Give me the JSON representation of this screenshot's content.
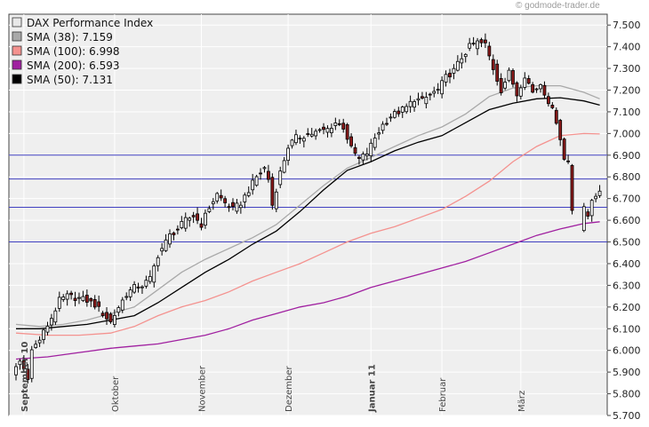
{
  "watermark": "© godmode-trader.de",
  "chart_data": {
    "type": "candlestick",
    "title": "",
    "xlabel": "",
    "ylabel": "",
    "ylim": [
      5700,
      7550
    ],
    "y_axis_side": "right",
    "grid": true,
    "legend_placement": "top-left",
    "y_ticks": [
      {
        "value": 5700,
        "label": "5.700"
      },
      {
        "value": 5800,
        "label": "5.800"
      },
      {
        "value": 5900,
        "label": "5.900"
      },
      {
        "value": 6000,
        "label": "6.000"
      },
      {
        "value": 6100,
        "label": "6.100"
      },
      {
        "value": 6200,
        "label": "6.200"
      },
      {
        "value": 6300,
        "label": "6.300"
      },
      {
        "value": 6400,
        "label": "6.400"
      },
      {
        "value": 6500,
        "label": "6.500"
      },
      {
        "value": 6600,
        "label": "6.600"
      },
      {
        "value": 6700,
        "label": "6.700"
      },
      {
        "value": 6800,
        "label": "6.800"
      },
      {
        "value": 6900,
        "label": "6.900"
      },
      {
        "value": 7000,
        "label": "7.000"
      },
      {
        "value": 7100,
        "label": "7.100"
      },
      {
        "value": 7200,
        "label": "7.200"
      },
      {
        "value": 7300,
        "label": "7.300"
      },
      {
        "value": 7400,
        "label": "7.400"
      },
      {
        "value": 7500,
        "label": "7.500"
      }
    ],
    "x_ticks": [
      {
        "index": 2,
        "label": "September 10",
        "bold": true
      },
      {
        "index": 25,
        "label": "Oktober",
        "bold": false
      },
      {
        "index": 47,
        "label": "November",
        "bold": false
      },
      {
        "index": 69,
        "label": "Dezember",
        "bold": false
      },
      {
        "index": 90,
        "label": "Januar 11",
        "bold": true
      },
      {
        "index": 108,
        "label": "Februar",
        "bold": false
      },
      {
        "index": 128,
        "label": "März",
        "bold": false
      }
    ],
    "horizontal_lines": [
      6900,
      6790,
      6660,
      6500
    ],
    "legend": [
      {
        "label": "DAX Performance Index",
        "color": "#e8e8e8"
      },
      {
        "label": "SMA (38): 7.159",
        "color": "#a9a9a9"
      },
      {
        "label": "SMA (100): 6.998",
        "color": "#f4928f"
      },
      {
        "label": "SMA (200): 6.593",
        "color": "#a020a0"
      },
      {
        "label": "SMA (50): 7.131",
        "color": "#000000"
      }
    ],
    "price_path": [
      [
        0,
        5900
      ],
      [
        2,
        5950
      ],
      [
        4,
        5880
      ],
      [
        5,
        6000
      ],
      [
        7,
        6050
      ],
      [
        10,
        6150
      ],
      [
        12,
        6230
      ],
      [
        14,
        6250
      ],
      [
        17,
        6240
      ],
      [
        19,
        6230
      ],
      [
        21,
        6210
      ],
      [
        23,
        6170
      ],
      [
        25,
        6130
      ],
      [
        27,
        6200
      ],
      [
        29,
        6260
      ],
      [
        31,
        6290
      ],
      [
        33,
        6300
      ],
      [
        35,
        6330
      ],
      [
        37,
        6440
      ],
      [
        40,
        6530
      ],
      [
        42,
        6560
      ],
      [
        44,
        6600
      ],
      [
        46,
        6620
      ],
      [
        48,
        6580
      ],
      [
        50,
        6660
      ],
      [
        52,
        6720
      ],
      [
        54,
        6680
      ],
      [
        56,
        6650
      ],
      [
        58,
        6680
      ],
      [
        60,
        6740
      ],
      [
        62,
        6800
      ],
      [
        64,
        6840
      ],
      [
        65,
        6790
      ],
      [
        66,
        6670
      ],
      [
        68,
        6820
      ],
      [
        70,
        6940
      ],
      [
        72,
        6980
      ],
      [
        74,
        6990
      ],
      [
        76,
        7000
      ],
      [
        78,
        7010
      ],
      [
        80,
        7020
      ],
      [
        82,
        7050
      ],
      [
        84,
        7030
      ],
      [
        86,
        6930
      ],
      [
        88,
        6880
      ],
      [
        90,
        6910
      ],
      [
        92,
        6980
      ],
      [
        94,
        7040
      ],
      [
        96,
        7080
      ],
      [
        98,
        7100
      ],
      [
        100,
        7120
      ],
      [
        102,
        7160
      ],
      [
        104,
        7150
      ],
      [
        106,
        7180
      ],
      [
        108,
        7200
      ],
      [
        110,
        7260
      ],
      [
        112,
        7290
      ],
      [
        114,
        7350
      ],
      [
        116,
        7400
      ],
      [
        118,
        7420
      ],
      [
        120,
        7410
      ],
      [
        122,
        7300
      ],
      [
        124,
        7200
      ],
      [
        126,
        7280
      ],
      [
        128,
        7180
      ],
      [
        130,
        7270
      ],
      [
        132,
        7190
      ],
      [
        134,
        7230
      ],
      [
        136,
        7150
      ],
      [
        138,
        7060
      ],
      [
        139,
        6980
      ],
      [
        140,
        6880
      ],
      [
        141,
        6870
      ],
      [
        142,
        6650
      ],
      [
        144,
        6570
      ],
      [
        145,
        6650
      ],
      [
        146,
        6620
      ],
      [
        147,
        6700
      ],
      [
        148,
        6720
      ]
    ],
    "sma_38": [
      [
        0,
        6120
      ],
      [
        6,
        6110
      ],
      [
        12,
        6120
      ],
      [
        18,
        6140
      ],
      [
        24,
        6170
      ],
      [
        30,
        6200
      ],
      [
        36,
        6280
      ],
      [
        42,
        6360
      ],
      [
        48,
        6420
      ],
      [
        54,
        6470
      ],
      [
        60,
        6520
      ],
      [
        66,
        6580
      ],
      [
        72,
        6670
      ],
      [
        78,
        6760
      ],
      [
        84,
        6840
      ],
      [
        90,
        6890
      ],
      [
        96,
        6940
      ],
      [
        102,
        6990
      ],
      [
        108,
        7030
      ],
      [
        114,
        7090
      ],
      [
        120,
        7170
      ],
      [
        126,
        7210
      ],
      [
        132,
        7220
      ],
      [
        138,
        7220
      ],
      [
        144,
        7190
      ],
      [
        148,
        7160
      ]
    ],
    "sma_50": [
      [
        0,
        6100
      ],
      [
        6,
        6100
      ],
      [
        12,
        6110
      ],
      [
        18,
        6120
      ],
      [
        24,
        6140
      ],
      [
        30,
        6160
      ],
      [
        36,
        6220
      ],
      [
        42,
        6290
      ],
      [
        48,
        6360
      ],
      [
        54,
        6420
      ],
      [
        60,
        6490
      ],
      [
        66,
        6550
      ],
      [
        72,
        6640
      ],
      [
        78,
        6740
      ],
      [
        84,
        6830
      ],
      [
        90,
        6870
      ],
      [
        96,
        6920
      ],
      [
        102,
        6960
      ],
      [
        108,
        6990
      ],
      [
        114,
        7050
      ],
      [
        120,
        7110
      ],
      [
        126,
        7140
      ],
      [
        132,
        7160
      ],
      [
        138,
        7165
      ],
      [
        144,
        7150
      ],
      [
        148,
        7131
      ]
    ],
    "sma_100": [
      [
        0,
        6080
      ],
      [
        8,
        6070
      ],
      [
        16,
        6070
      ],
      [
        24,
        6080
      ],
      [
        30,
        6110
      ],
      [
        36,
        6160
      ],
      [
        42,
        6200
      ],
      [
        48,
        6230
      ],
      [
        54,
        6270
      ],
      [
        60,
        6320
      ],
      [
        66,
        6360
      ],
      [
        72,
        6400
      ],
      [
        78,
        6450
      ],
      [
        84,
        6500
      ],
      [
        90,
        6540
      ],
      [
        96,
        6570
      ],
      [
        102,
        6610
      ],
      [
        108,
        6650
      ],
      [
        114,
        6710
      ],
      [
        120,
        6780
      ],
      [
        126,
        6870
      ],
      [
        132,
        6940
      ],
      [
        138,
        6990
      ],
      [
        144,
        7000
      ],
      [
        148,
        6998
      ]
    ],
    "sma_200": [
      [
        0,
        5960
      ],
      [
        8,
        5970
      ],
      [
        16,
        5990
      ],
      [
        24,
        6010
      ],
      [
        30,
        6020
      ],
      [
        36,
        6030
      ],
      [
        42,
        6050
      ],
      [
        48,
        6070
      ],
      [
        54,
        6100
      ],
      [
        60,
        6140
      ],
      [
        66,
        6170
      ],
      [
        72,
        6200
      ],
      [
        78,
        6220
      ],
      [
        84,
        6250
      ],
      [
        90,
        6290
      ],
      [
        96,
        6320
      ],
      [
        102,
        6350
      ],
      [
        108,
        6380
      ],
      [
        114,
        6410
      ],
      [
        120,
        6450
      ],
      [
        126,
        6490
      ],
      [
        132,
        6530
      ],
      [
        138,
        6560
      ],
      [
        144,
        6585
      ],
      [
        148,
        6593
      ]
    ]
  }
}
